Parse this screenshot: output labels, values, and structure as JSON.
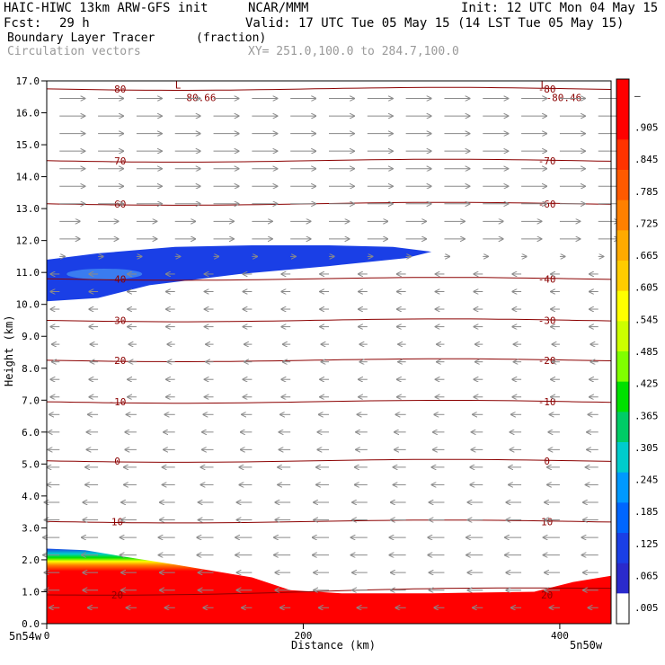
{
  "header": {
    "model": "HAIC-HIWC 13km ARW-GFS init",
    "org": "NCAR/MMM",
    "init": "Init: 12 UTC Mon 04 May 15",
    "fcst_label": "Fcst:",
    "fcst_value": "29 h",
    "valid": "Valid: 17 UTC Tue 05 May 15 (14 LST Tue 05 May 15)",
    "field": "Boundary Layer Tracer",
    "field_units": "(fraction)",
    "overlay": "Circulation vectors",
    "xsec": "XY= 251.0,100.0 to 284.7,100.0"
  },
  "axes": {
    "left_end_label": "5n54w",
    "right_end_label": "5n50w"
  },
  "colors": {
    "frame": "#000000",
    "contour": "#8b0000",
    "contour_label": "#8b0000",
    "vector": "#8a8a8a"
  },
  "chart_data": {
    "type": "heatmap",
    "title": "Boundary Layer Tracer (fraction)",
    "xlabel": "Distance (km)",
    "ylabel": "Height (km)",
    "xlim": [
      0,
      440
    ],
    "ylim": [
      0,
      17
    ],
    "x_ticks": [
      {
        "value": 0,
        "label": "0"
      },
      {
        "value": 200,
        "label": "200"
      },
      {
        "value": 400,
        "label": "400"
      }
    ],
    "y_ticks": [
      {
        "value": 0,
        "label": "0.0"
      },
      {
        "value": 1,
        "label": "1.0"
      },
      {
        "value": 2,
        "label": "2.0"
      },
      {
        "value": 3,
        "label": "3.0"
      },
      {
        "value": 4,
        "label": "4.0"
      },
      {
        "value": 5,
        "label": "5.0"
      },
      {
        "value": 6,
        "label": "6.0"
      },
      {
        "value": 7,
        "label": "7.0"
      },
      {
        "value": 8,
        "label": "8.0"
      },
      {
        "value": 9,
        "label": "9.0"
      },
      {
        "value": 10,
        "label": "10.0"
      },
      {
        "value": 11,
        "label": "11.0"
      },
      {
        "value": 12,
        "label": "12.0"
      },
      {
        "value": 13,
        "label": "13.0"
      },
      {
        "value": 14,
        "label": "14.0"
      },
      {
        "value": 15,
        "label": "15.0"
      },
      {
        "value": 16,
        "label": "16.0"
      },
      {
        "value": 17,
        "label": "17.0"
      }
    ],
    "colorbar": {
      "labels": [
        "–",
        ".905",
        ".845",
        ".785",
        ".725",
        ".665",
        ".605",
        ".545",
        ".485",
        ".425",
        ".365",
        ".305",
        ".245",
        ".185",
        ".125",
        ".065",
        ".005"
      ],
      "colors": [
        "#ff0000",
        "#ff0000",
        "#ff3300",
        "#ff5a00",
        "#ff8000",
        "#ffaa00",
        "#ffcc00",
        "#ffff00",
        "#ccff00",
        "#80ff00",
        "#00e000",
        "#00cc66",
        "#00cccc",
        "#0099ff",
        "#0066ff",
        "#1a3fe6",
        "#2a2acc",
        "#ffffff"
      ]
    },
    "tracer_plumes": [
      {
        "name": "boundary-layer",
        "outline": [
          [
            0,
            2.35
          ],
          [
            30,
            2.3
          ],
          [
            60,
            2.1
          ],
          [
            100,
            1.85
          ],
          [
            130,
            1.65
          ],
          [
            160,
            1.45
          ],
          [
            190,
            1.05
          ],
          [
            230,
            0.95
          ],
          [
            300,
            0.95
          ],
          [
            380,
            1.0
          ],
          [
            410,
            1.3
          ],
          [
            440,
            1.5
          ],
          [
            440,
            0
          ],
          [
            0,
            0
          ]
        ],
        "core_value": 1.0
      },
      {
        "name": "upper-outflow",
        "outline": [
          [
            0,
            11.4
          ],
          [
            40,
            11.6
          ],
          [
            100,
            11.8
          ],
          [
            160,
            11.85
          ],
          [
            220,
            11.85
          ],
          [
            270,
            11.8
          ],
          [
            300,
            11.65
          ],
          [
            280,
            11.45
          ],
          [
            220,
            11.2
          ],
          [
            150,
            10.95
          ],
          [
            80,
            10.6
          ],
          [
            40,
            10.2
          ],
          [
            0,
            10.1
          ]
        ],
        "core_value": 0.07
      }
    ],
    "isotherms": [
      {
        "label": "-80",
        "y": 16.75
      },
      {
        "label": "-70",
        "y": 14.5
      },
      {
        "label": "-60",
        "y": 13.15
      },
      {
        "label": "-40",
        "y": 10.8
      },
      {
        "label": "-30",
        "y": 9.5
      },
      {
        "label": "-20",
        "y": 8.25
      },
      {
        "label": "-10",
        "y": 6.95
      },
      {
        "label": "0",
        "y": 5.1
      },
      {
        "label": "10",
        "y": 3.2
      },
      {
        "label": "20",
        "y": 0.9
      }
    ],
    "extrema": [
      {
        "label": "L",
        "value": "-80.66",
        "x": 100,
        "y": 16.7
      },
      {
        "label": "L",
        "value": "-80.46",
        "x": 385,
        "y": 16.7
      }
    ],
    "wind_profile": [
      {
        "z": 16.5,
        "u": 1.0
      },
      {
        "z": 15.5,
        "u": 1.0
      },
      {
        "z": 14.5,
        "u": 1.0
      },
      {
        "z": 13.5,
        "u": 1.0
      },
      {
        "z": 12.5,
        "u": 0.8
      },
      {
        "z": 11.5,
        "u": 0.2
      },
      {
        "z": 10.5,
        "u": -0.35
      },
      {
        "z": 9.5,
        "u": -0.35
      },
      {
        "z": 8.5,
        "u": -0.3
      },
      {
        "z": 7.5,
        "u": -0.35
      },
      {
        "z": 6.5,
        "u": -0.4
      },
      {
        "z": 5.5,
        "u": -0.45
      },
      {
        "z": 4.5,
        "u": -0.5
      },
      {
        "z": 3.5,
        "u": -0.6
      },
      {
        "z": 2.5,
        "u": -0.65
      },
      {
        "z": 1.5,
        "u": -0.6
      },
      {
        "z": 0.5,
        "u": -0.4
      }
    ]
  }
}
